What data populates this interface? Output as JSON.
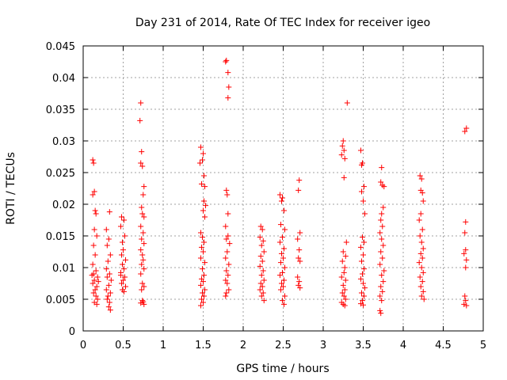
{
  "chart_data": {
    "type": "scatter",
    "title": "Day 231 of 2014, Rate Of TEC Index for receiver igeo",
    "xlabel": "GPS time / hours",
    "ylabel": "ROTI / TECUs",
    "xlim": [
      0,
      5
    ],
    "ylim": [
      0,
      0.045
    ],
    "x_ticks": [
      0,
      0.5,
      1,
      1.5,
      2,
      2.5,
      3,
      3.5,
      4,
      4.5,
      5
    ],
    "x_tick_labels": [
      "0",
      "0.5",
      "1",
      "1.5",
      "2",
      "2.5",
      "3",
      "3.5",
      "4",
      "4.5",
      "5"
    ],
    "y_ticks": [
      0,
      0.005,
      0.01,
      0.015,
      0.02,
      0.025,
      0.03,
      0.035,
      0.04,
      0.045
    ],
    "y_tick_labels": [
      "0",
      "0.005",
      "0.01",
      "0.015",
      "0.02",
      "0.025",
      "0.03",
      "0.035",
      "0.04",
      "0.045"
    ],
    "grid": true,
    "marker": "plus",
    "color": "#ff0000",
    "series": [
      {
        "name": "ROTI",
        "points": [
          [
            0.12,
            0.027
          ],
          [
            0.13,
            0.0265
          ],
          [
            0.12,
            0.0215
          ],
          [
            0.14,
            0.022
          ],
          [
            0.15,
            0.019
          ],
          [
            0.16,
            0.0185
          ],
          [
            0.14,
            0.016
          ],
          [
            0.17,
            0.015
          ],
          [
            0.13,
            0.0135
          ],
          [
            0.15,
            0.012
          ],
          [
            0.12,
            0.0105
          ],
          [
            0.16,
            0.0095
          ],
          [
            0.13,
            0.009
          ],
          [
            0.18,
            0.0085
          ],
          [
            0.14,
            0.008
          ],
          [
            0.12,
            0.0075
          ],
          [
            0.17,
            0.007
          ],
          [
            0.15,
            0.0065
          ],
          [
            0.13,
            0.006
          ],
          [
            0.16,
            0.0055
          ],
          [
            0.18,
            0.005
          ],
          [
            0.14,
            0.0045
          ],
          [
            0.17,
            0.0042
          ],
          [
            0.11,
            0.0088
          ],
          [
            0.19,
            0.0078
          ],
          [
            0.33,
            0.0188
          ],
          [
            0.29,
            0.016
          ],
          [
            0.32,
            0.0145
          ],
          [
            0.3,
            0.0135
          ],
          [
            0.34,
            0.012
          ],
          [
            0.31,
            0.011
          ],
          [
            0.29,
            0.0098
          ],
          [
            0.33,
            0.009
          ],
          [
            0.3,
            0.0085
          ],
          [
            0.35,
            0.008
          ],
          [
            0.32,
            0.0072
          ],
          [
            0.29,
            0.0065
          ],
          [
            0.34,
            0.006
          ],
          [
            0.31,
            0.0055
          ],
          [
            0.3,
            0.005
          ],
          [
            0.33,
            0.0045
          ],
          [
            0.32,
            0.0038
          ],
          [
            0.34,
            0.0033
          ],
          [
            0.48,
            0.018
          ],
          [
            0.51,
            0.0175
          ],
          [
            0.47,
            0.0165
          ],
          [
            0.52,
            0.015
          ],
          [
            0.49,
            0.014
          ],
          [
            0.5,
            0.0128
          ],
          [
            0.48,
            0.012
          ],
          [
            0.53,
            0.0112
          ],
          [
            0.49,
            0.0105
          ],
          [
            0.51,
            0.0098
          ],
          [
            0.47,
            0.0092
          ],
          [
            0.52,
            0.0085
          ],
          [
            0.5,
            0.008
          ],
          [
            0.48,
            0.0075
          ],
          [
            0.53,
            0.007
          ],
          [
            0.49,
            0.0065
          ],
          [
            0.51,
            0.0062
          ],
          [
            0.47,
            0.0088
          ],
          [
            0.72,
            0.036
          ],
          [
            0.71,
            0.0332
          ],
          [
            0.73,
            0.0283
          ],
          [
            0.72,
            0.0265
          ],
          [
            0.74,
            0.026
          ],
          [
            0.76,
            0.0228
          ],
          [
            0.75,
            0.0215
          ],
          [
            0.73,
            0.0195
          ],
          [
            0.74,
            0.0185
          ],
          [
            0.76,
            0.018
          ],
          [
            0.72,
            0.0165
          ],
          [
            0.75,
            0.0155
          ],
          [
            0.73,
            0.0145
          ],
          [
            0.76,
            0.0138
          ],
          [
            0.72,
            0.0128
          ],
          [
            0.74,
            0.012
          ],
          [
            0.75,
            0.0112
          ],
          [
            0.73,
            0.0105
          ],
          [
            0.76,
            0.0098
          ],
          [
            0.72,
            0.009
          ],
          [
            0.74,
            0.0075
          ],
          [
            0.76,
            0.007
          ],
          [
            0.73,
            0.0065
          ],
          [
            0.75,
            0.0046
          ],
          [
            0.72,
            0.0044
          ],
          [
            0.76,
            0.0042
          ],
          [
            0.74,
            0.0048
          ],
          [
            1.47,
            0.029
          ],
          [
            1.5,
            0.028
          ],
          [
            1.49,
            0.027
          ],
          [
            1.46,
            0.0265
          ],
          [
            1.51,
            0.0245
          ],
          [
            1.48,
            0.0232
          ],
          [
            1.52,
            0.0228
          ],
          [
            1.51,
            0.0205
          ],
          [
            1.53,
            0.0198
          ],
          [
            1.5,
            0.019
          ],
          [
            1.52,
            0.018
          ],
          [
            1.47,
            0.0155
          ],
          [
            1.49,
            0.0148
          ],
          [
            1.51,
            0.014
          ],
          [
            1.48,
            0.0132
          ],
          [
            1.5,
            0.0125
          ],
          [
            1.47,
            0.0115
          ],
          [
            1.52,
            0.0108
          ],
          [
            1.49,
            0.0098
          ],
          [
            1.51,
            0.0088
          ],
          [
            1.48,
            0.0082
          ],
          [
            1.5,
            0.0078
          ],
          [
            1.47,
            0.0072
          ],
          [
            1.52,
            0.0065
          ],
          [
            1.49,
            0.006
          ],
          [
            1.51,
            0.0055
          ],
          [
            1.48,
            0.005
          ],
          [
            1.5,
            0.0045
          ],
          [
            1.47,
            0.004
          ],
          [
            1.79,
            0.0427
          ],
          [
            1.78,
            0.0425
          ],
          [
            1.81,
            0.0408
          ],
          [
            1.82,
            0.0385
          ],
          [
            1.81,
            0.0368
          ],
          [
            1.79,
            0.0222
          ],
          [
            1.8,
            0.0215
          ],
          [
            1.81,
            0.0185
          ],
          [
            1.78,
            0.0165
          ],
          [
            1.81,
            0.015
          ],
          [
            1.79,
            0.0145
          ],
          [
            1.83,
            0.0138
          ],
          [
            1.8,
            0.0125
          ],
          [
            1.78,
            0.0115
          ],
          [
            1.82,
            0.0105
          ],
          [
            1.79,
            0.0095
          ],
          [
            1.81,
            0.0088
          ],
          [
            1.78,
            0.008
          ],
          [
            1.8,
            0.0075
          ],
          [
            1.82,
            0.0065
          ],
          [
            1.79,
            0.006
          ],
          [
            1.78,
            0.0055
          ],
          [
            2.22,
            0.0165
          ],
          [
            2.24,
            0.016
          ],
          [
            2.21,
            0.0148
          ],
          [
            2.25,
            0.0142
          ],
          [
            2.23,
            0.0135
          ],
          [
            2.26,
            0.0125
          ],
          [
            2.22,
            0.0118
          ],
          [
            2.24,
            0.011
          ],
          [
            2.21,
            0.0102
          ],
          [
            2.25,
            0.0095
          ],
          [
            2.23,
            0.0088
          ],
          [
            2.26,
            0.008
          ],
          [
            2.22,
            0.0075
          ],
          [
            2.24,
            0.007
          ],
          [
            2.21,
            0.0065
          ],
          [
            2.25,
            0.006
          ],
          [
            2.23,
            0.0055
          ],
          [
            2.26,
            0.0048
          ],
          [
            2.46,
            0.0215
          ],
          [
            2.49,
            0.021
          ],
          [
            2.48,
            0.0205
          ],
          [
            2.51,
            0.019
          ],
          [
            2.47,
            0.0168
          ],
          [
            2.52,
            0.016
          ],
          [
            2.49,
            0.0148
          ],
          [
            2.46,
            0.014
          ],
          [
            2.51,
            0.013
          ],
          [
            2.48,
            0.0122
          ],
          [
            2.5,
            0.0115
          ],
          [
            2.47,
            0.0108
          ],
          [
            2.52,
            0.01
          ],
          [
            2.49,
            0.0092
          ],
          [
            2.46,
            0.0088
          ],
          [
            2.51,
            0.008
          ],
          [
            2.48,
            0.0075
          ],
          [
            2.5,
            0.007
          ],
          [
            2.47,
            0.0065
          ],
          [
            2.52,
            0.0055
          ],
          [
            2.49,
            0.0048
          ],
          [
            2.51,
            0.0042
          ],
          [
            2.7,
            0.0238
          ],
          [
            2.69,
            0.0222
          ],
          [
            2.71,
            0.0155
          ],
          [
            2.68,
            0.0145
          ],
          [
            2.7,
            0.0128
          ],
          [
            2.69,
            0.0115
          ],
          [
            2.71,
            0.011
          ],
          [
            2.68,
            0.0085
          ],
          [
            2.7,
            0.0078
          ],
          [
            2.69,
            0.0072
          ],
          [
            2.71,
            0.0068
          ],
          [
            3.25,
            0.03
          ],
          [
            3.24,
            0.0292
          ],
          [
            3.26,
            0.0285
          ],
          [
            3.23,
            0.0278
          ],
          [
            3.27,
            0.0272
          ],
          [
            3.3,
            0.036
          ],
          [
            3.26,
            0.0242
          ],
          [
            3.29,
            0.014
          ],
          [
            3.25,
            0.0125
          ],
          [
            3.28,
            0.0118
          ],
          [
            3.24,
            0.011
          ],
          [
            3.27,
            0.01
          ],
          [
            3.26,
            0.0092
          ],
          [
            3.23,
            0.0085
          ],
          [
            3.28,
            0.008
          ],
          [
            3.25,
            0.0072
          ],
          [
            3.27,
            0.0065
          ],
          [
            3.24,
            0.006
          ],
          [
            3.26,
            0.0055
          ],
          [
            3.28,
            0.005
          ],
          [
            3.23,
            0.0045
          ],
          [
            3.25,
            0.0042
          ],
          [
            3.27,
            0.004
          ],
          [
            3.47,
            0.0285
          ],
          [
            3.49,
            0.0265
          ],
          [
            3.48,
            0.0262
          ],
          [
            3.51,
            0.0228
          ],
          [
            3.48,
            0.022
          ],
          [
            3.5,
            0.0205
          ],
          [
            3.52,
            0.0185
          ],
          [
            3.49,
            0.0148
          ],
          [
            3.51,
            0.014
          ],
          [
            3.47,
            0.0132
          ],
          [
            3.5,
            0.012
          ],
          [
            3.48,
            0.011
          ],
          [
            3.51,
            0.0098
          ],
          [
            3.49,
            0.009
          ],
          [
            3.47,
            0.0082
          ],
          [
            3.5,
            0.0075
          ],
          [
            3.52,
            0.0068
          ],
          [
            3.48,
            0.006
          ],
          [
            3.51,
            0.0055
          ],
          [
            3.49,
            0.0048
          ],
          [
            3.47,
            0.0043
          ],
          [
            3.5,
            0.0041
          ],
          [
            3.73,
            0.0258
          ],
          [
            3.72,
            0.0235
          ],
          [
            3.74,
            0.023
          ],
          [
            3.76,
            0.0228
          ],
          [
            3.75,
            0.0195
          ],
          [
            3.73,
            0.0185
          ],
          [
            3.72,
            0.0175
          ],
          [
            3.74,
            0.0165
          ],
          [
            3.71,
            0.0155
          ],
          [
            3.73,
            0.0145
          ],
          [
            3.75,
            0.0135
          ],
          [
            3.72,
            0.0125
          ],
          [
            3.74,
            0.0115
          ],
          [
            3.71,
            0.0105
          ],
          [
            3.76,
            0.0095
          ],
          [
            3.73,
            0.0088
          ],
          [
            3.75,
            0.0078
          ],
          [
            3.72,
            0.007
          ],
          [
            3.74,
            0.0062
          ],
          [
            3.71,
            0.0055
          ],
          [
            3.73,
            0.0048
          ],
          [
            3.71,
            0.0032
          ],
          [
            3.72,
            0.0028
          ],
          [
            4.21,
            0.0245
          ],
          [
            4.23,
            0.024
          ],
          [
            4.22,
            0.0222
          ],
          [
            4.24,
            0.0218
          ],
          [
            4.25,
            0.0205
          ],
          [
            4.22,
            0.0185
          ],
          [
            4.2,
            0.0175
          ],
          [
            4.24,
            0.016
          ],
          [
            4.21,
            0.015
          ],
          [
            4.23,
            0.014
          ],
          [
            4.25,
            0.013
          ],
          [
            4.22,
            0.0122
          ],
          [
            4.24,
            0.0115
          ],
          [
            4.2,
            0.0108
          ],
          [
            4.23,
            0.01
          ],
          [
            4.25,
            0.0092
          ],
          [
            4.21,
            0.0085
          ],
          [
            4.24,
            0.0078
          ],
          [
            4.22,
            0.007
          ],
          [
            4.25,
            0.0062
          ],
          [
            4.23,
            0.0055
          ],
          [
            4.26,
            0.005
          ],
          [
            4.79,
            0.032
          ],
          [
            4.77,
            0.0315
          ],
          [
            4.78,
            0.0172
          ],
          [
            4.77,
            0.0155
          ],
          [
            4.78,
            0.0128
          ],
          [
            4.76,
            0.0122
          ],
          [
            4.79,
            0.0112
          ],
          [
            4.78,
            0.01
          ],
          [
            4.77,
            0.0055
          ],
          [
            4.78,
            0.0048
          ],
          [
            4.76,
            0.0042
          ],
          [
            4.79,
            0.004
          ]
        ]
      }
    ]
  }
}
